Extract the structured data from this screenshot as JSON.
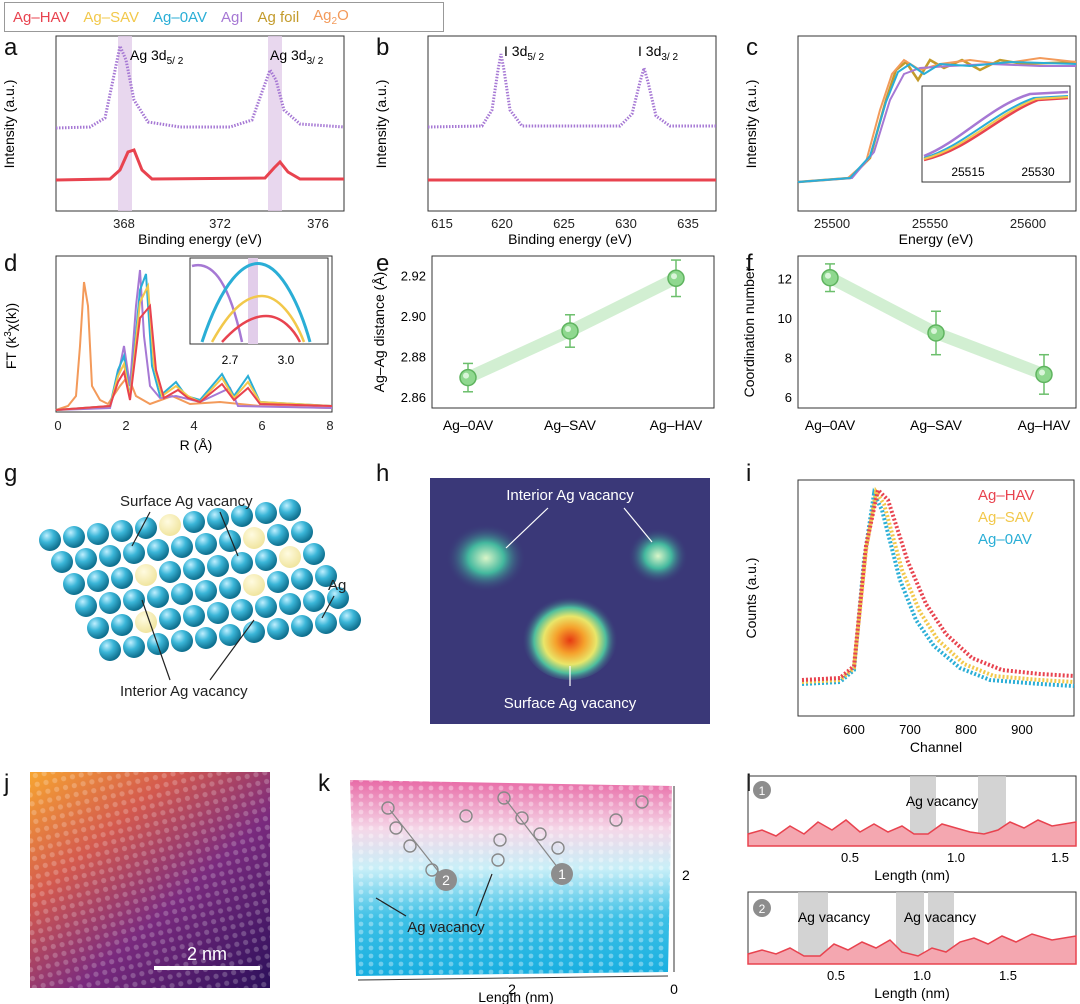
{
  "colors": {
    "hav": "#e8434f",
    "sav": "#f2c84b",
    "oav": "#2aaed6",
    "agi": "#a678d4",
    "foil": "#c39b2b",
    "ag2o": "#f39a5a",
    "green": "#8fd88f"
  },
  "legend": {
    "hav": "Ag–HAV",
    "sav": "Ag–SAV",
    "oav": "Ag–0AV",
    "agi": "AgI",
    "foil": "Ag foil",
    "ag2o_main": "Ag",
    "ag2o_sub": "2",
    "ag2o_end": "O"
  },
  "panels": {
    "a": {
      "letter": "a",
      "ylabel": "Intensity (a.u.)",
      "xlabel": "Binding energy (eV)",
      "ticks": [
        "368",
        "372",
        "376"
      ],
      "peak1": "Ag 3d",
      "peak1_sub": "5/ 2",
      "peak2": "Ag 3d",
      "peak2_sub": "3/ 2"
    },
    "b": {
      "letter": "b",
      "ylabel": "Intensity (a.u.)",
      "xlabel": "Binding energy (eV)",
      "ticks": [
        "615",
        "620",
        "625",
        "630",
        "635"
      ],
      "peak1": "I 3d",
      "peak1_sub": "5/ 2",
      "peak2": "I 3d",
      "peak2_sub": "3/ 2"
    },
    "c": {
      "letter": "c",
      "ylabel": "Intensity (a.u.)",
      "xlabel": "Energy (eV)",
      "ticks": [
        "25500",
        "25550",
        "25600"
      ],
      "inset_ticks": [
        "25515",
        "25530"
      ]
    },
    "d": {
      "letter": "d",
      "ylabel_main": "FT (k",
      "ylabel_sup": "3",
      "ylabel_end": "χ(k))",
      "xlabel": "R (Å)",
      "ticks": [
        "0",
        "2",
        "4",
        "6",
        "8"
      ],
      "inset_ticks": [
        "2.7",
        "3.0"
      ]
    },
    "e": {
      "letter": "e",
      "ylabel": "Ag–Ag distance (Å)",
      "yticks": [
        "2.86",
        "2.88",
        "2.90",
        "2.92"
      ],
      "categories": [
        "Ag–0AV",
        "Ag–SAV",
        "Ag–HAV"
      ]
    },
    "f": {
      "letter": "f",
      "ylabel": "Coordination number",
      "yticks": [
        "6",
        "8",
        "10",
        "12"
      ],
      "categories": [
        "Ag–0AV",
        "Ag–SAV",
        "Ag–HAV"
      ]
    },
    "g": {
      "letter": "g",
      "surface": "Surface Ag vacancy",
      "ag": "Ag",
      "interior": "Interior Ag vacancy"
    },
    "h": {
      "letter": "h",
      "interior": "Interior Ag vacancy",
      "surface": "Surface Ag vacancy"
    },
    "i": {
      "letter": "i",
      "ylabel": "Counts (a.u.)",
      "xlabel": "Channel",
      "ticks": [
        "600",
        "700",
        "800",
        "900"
      ],
      "legend": [
        "Ag–HAV",
        "Ag–SAV",
        "Ag–0AV"
      ]
    },
    "j": {
      "letter": "j",
      "scalebar": "2 nm"
    },
    "k": {
      "letter": "k",
      "xlabel": "Length (nm)",
      "xticks": [
        "2",
        "0"
      ],
      "ytick": "2",
      "vacancy": "Ag vacancy",
      "badge1": "1",
      "badge2": "2"
    },
    "l": {
      "letter": "l",
      "xlabel": "Length (nm)",
      "top_ticks": [
        "0.5",
        "1.0",
        "1.5"
      ],
      "bottom_ticks": [
        "0.5",
        "1.0",
        "1.5"
      ],
      "vacancy": "Ag vacancy",
      "badge1": "1",
      "badge2": "2"
    }
  },
  "chart_data": [
    {
      "type": "scatter",
      "panel": "e",
      "categories": [
        "Ag–0AV",
        "Ag–SAV",
        "Ag–HAV"
      ],
      "values": [
        2.87,
        2.893,
        2.919
      ],
      "errors": [
        0.007,
        0.008,
        0.009
      ],
      "ylabel": "Ag–Ag distance (Å)",
      "ylim": [
        2.855,
        2.93
      ]
    },
    {
      "type": "scatter",
      "panel": "f",
      "categories": [
        "Ag–0AV",
        "Ag–SAV",
        "Ag–HAV"
      ],
      "values": [
        12.1,
        9.3,
        7.2
      ],
      "errors": [
        0.7,
        1.1,
        1.0
      ],
      "ylabel": "Coordination number",
      "ylim": [
        5.5,
        13.2
      ]
    }
  ]
}
